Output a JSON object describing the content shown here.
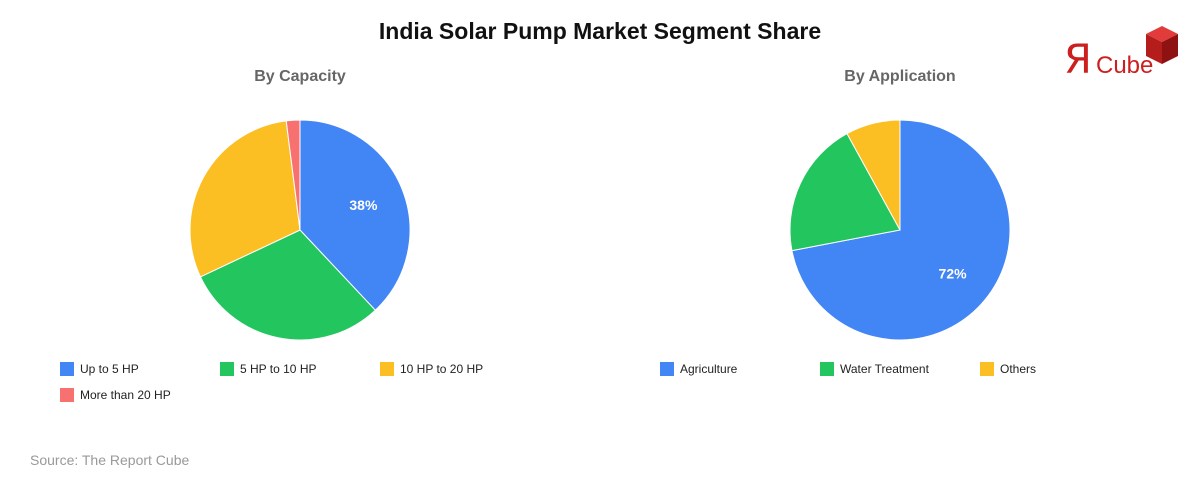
{
  "title": "India Solar Pump Market Segment Share",
  "source": "Source: The Report Cube",
  "logo": {
    "mark": "Я",
    "text": "Cube"
  },
  "chart_data": [
    {
      "type": "pie",
      "title": "By Capacity",
      "categories": [
        "Up to 5 HP",
        "5 HP to 10 HP",
        "10 HP to 20 HP",
        "More than 20 HP"
      ],
      "values": [
        38,
        30,
        30,
        2
      ],
      "colors": [
        "#4285f4",
        "#22c55e",
        "#fbbf24",
        "#f87171"
      ],
      "labels": [
        {
          "index": 0,
          "text": "38%"
        }
      ],
      "legend": "bottom"
    },
    {
      "type": "pie",
      "title": "By Application",
      "categories": [
        "Agriculture",
        "Water Treatment",
        "Others"
      ],
      "values": [
        72,
        20,
        8
      ],
      "colors": [
        "#4285f4",
        "#22c55e",
        "#fbbf24"
      ],
      "labels": [
        {
          "index": 0,
          "text": "72%"
        }
      ],
      "legend": "bottom"
    }
  ]
}
